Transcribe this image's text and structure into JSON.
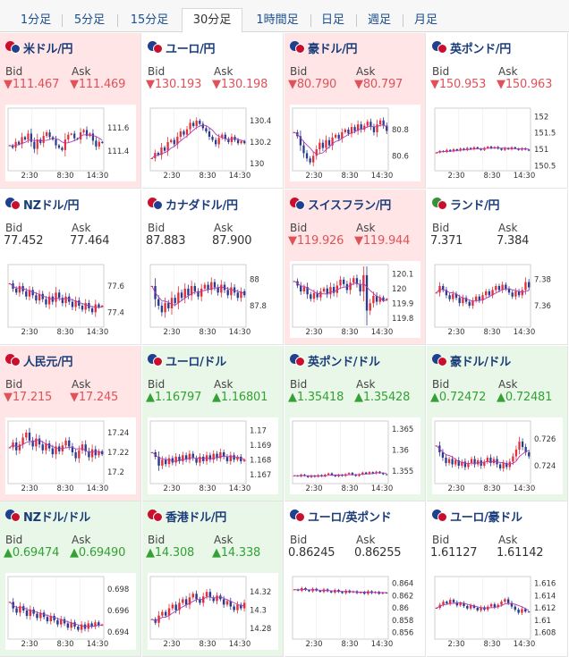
{
  "tabs": [
    {
      "label": "1分足",
      "active": false
    },
    {
      "label": "5分足",
      "active": false
    },
    {
      "label": "15分足",
      "active": false
    },
    {
      "label": "30分足",
      "active": true
    },
    {
      "label": "1時間足",
      "active": false
    },
    {
      "label": "日足",
      "active": false
    },
    {
      "label": "週足",
      "active": false
    },
    {
      "label": "月足",
      "active": false
    }
  ],
  "labels": {
    "bid": "Bid",
    "ask": "Ask"
  },
  "colors": {
    "up": "#35a035",
    "down": "#e0525a",
    "bull_candle": "#e0303a",
    "bear_candle": "#2a3a8c",
    "ma_line": "#b03ab8"
  },
  "pairs": [
    {
      "name": "米ドル/円",
      "bg": "red",
      "flags": [
        "#c8102e",
        "#1f3f8f"
      ],
      "direction": "down",
      "arrow": "▼",
      "bid": "111.467",
      "ask": "111.469",
      "chart_data": {
        "type": "candlestick",
        "x_ticks": [
          "2:30",
          "8:30",
          "14:30"
        ],
        "y_ticks": [
          "111.6",
          "111.4"
        ],
        "ylim": [
          111.25,
          111.75
        ],
        "closes": [
          111.45,
          111.43,
          111.48,
          111.46,
          111.52,
          111.5,
          111.55,
          111.48,
          111.42,
          111.5,
          111.47,
          111.53,
          111.56,
          111.52,
          111.5,
          111.45,
          111.43,
          111.41,
          111.5,
          111.54,
          111.55,
          111.51,
          111.5,
          111.56,
          111.58,
          111.53,
          111.55,
          111.49,
          111.44,
          111.48,
          111.47
        ]
      }
    },
    {
      "name": "ユーロ/円",
      "bg": "white",
      "flags": [
        "#1f3f8f",
        "#c8102e"
      ],
      "direction": "down",
      "arrow": "▼",
      "bid": "130.193",
      "ask": "130.198",
      "chart_data": {
        "type": "candlestick",
        "x_ticks": [
          "2:30",
          "8:30",
          "14:30"
        ],
        "y_ticks": [
          "130.4",
          "130.2",
          "130"
        ],
        "ylim": [
          129.95,
          130.5
        ],
        "closes": [
          130.05,
          130.1,
          130.08,
          130.15,
          130.12,
          130.2,
          130.22,
          130.18,
          130.25,
          130.3,
          130.27,
          130.32,
          130.38,
          130.35,
          130.4,
          130.37,
          130.33,
          130.3,
          130.25,
          130.22,
          130.18,
          130.24,
          130.27,
          130.23,
          130.2,
          130.25,
          130.22,
          130.19,
          130.21,
          130.19
        ]
      }
    },
    {
      "name": "豪ドル/円",
      "bg": "red",
      "flags": [
        "#1f3f8f",
        "#c8102e"
      ],
      "direction": "down",
      "arrow": "▼",
      "bid": "80.790",
      "ask": "80.797",
      "chart_data": {
        "type": "candlestick",
        "x_ticks": [
          "2:30",
          "8:30",
          "14:30"
        ],
        "y_ticks": [
          "80.8",
          "80.6"
        ],
        "ylim": [
          80.5,
          80.95
        ],
        "closes": [
          80.78,
          80.75,
          80.68,
          80.62,
          80.58,
          80.55,
          80.6,
          80.65,
          80.7,
          80.66,
          80.72,
          80.68,
          80.74,
          80.76,
          80.73,
          80.78,
          80.8,
          80.77,
          80.82,
          80.79,
          80.84,
          80.8,
          80.83,
          80.86,
          80.82,
          80.78,
          80.84,
          80.87,
          80.83,
          80.79
        ]
      }
    },
    {
      "name": "英ポンド/円",
      "bg": "white",
      "flags": [
        "#1f3f8f",
        "#c8102e"
      ],
      "direction": "down",
      "arrow": "▼",
      "bid": "150.953",
      "ask": "150.963",
      "chart_data": {
        "type": "candlestick",
        "x_ticks": [
          "2:30",
          "8:30",
          "14:30"
        ],
        "y_ticks": [
          "152",
          "151.5",
          "151",
          "150.5"
        ],
        "ylim": [
          150.4,
          152.2
        ],
        "closes": [
          150.9,
          150.95,
          150.92,
          150.98,
          150.94,
          151.0,
          150.96,
          151.02,
          150.98,
          151.04,
          151.0,
          151.06,
          151.02,
          150.98,
          151.04,
          151.08,
          151.03,
          151.07,
          151.02,
          150.98,
          151.04,
          151.0,
          151.06,
          151.02,
          150.98,
          151.03,
          150.99,
          150.96
        ]
      }
    },
    {
      "name": "NZドル/円",
      "bg": "white",
      "flags": [
        "#1f3f8f",
        "#c8102e"
      ],
      "direction": "flat",
      "arrow": "",
      "bid": "77.452",
      "ask": "77.464",
      "chart_data": {
        "type": "candlestick",
        "x_ticks": [
          "2:30",
          "8:30",
          "14:30"
        ],
        "y_ticks": [
          "77.6",
          "77.4"
        ],
        "ylim": [
          77.3,
          77.75
        ],
        "closes": [
          77.62,
          77.58,
          77.55,
          77.6,
          77.56,
          77.52,
          77.57,
          77.53,
          77.49,
          77.54,
          77.5,
          77.46,
          77.52,
          77.48,
          77.55,
          77.51,
          77.47,
          77.52,
          77.48,
          77.44,
          77.49,
          77.45,
          77.42,
          77.47,
          77.43,
          77.4,
          77.46,
          77.44,
          77.45
        ]
      }
    },
    {
      "name": "カナダドル/円",
      "bg": "white",
      "flags": [
        "#c8102e",
        "#1f3f8f"
      ],
      "direction": "flat",
      "arrow": "",
      "bid": "87.883",
      "ask": "87.900",
      "chart_data": {
        "type": "candlestick",
        "x_ticks": [
          "2:30",
          "8:30",
          "14:30"
        ],
        "y_ticks": [
          "88",
          "87.8"
        ],
        "ylim": [
          87.65,
          88.1
        ],
        "closes": [
          87.95,
          87.85,
          87.8,
          87.75,
          87.82,
          87.78,
          87.86,
          87.82,
          87.9,
          87.86,
          87.93,
          87.88,
          87.95,
          87.91,
          87.87,
          87.93,
          87.96,
          87.92,
          87.98,
          87.94,
          87.9,
          87.96,
          87.92,
          87.88,
          87.94,
          87.9,
          87.86,
          87.91,
          87.88
        ]
      }
    },
    {
      "name": "スイスフラン/円",
      "bg": "red",
      "flags": [
        "#c8102e",
        "#1f3f8f"
      ],
      "direction": "down",
      "arrow": "▼",
      "bid": "119.926",
      "ask": "119.944",
      "chart_data": {
        "type": "candlestick",
        "x_ticks": [
          "2:30",
          "8:30",
          "14:30"
        ],
        "y_ticks": [
          "120.1",
          "120",
          "119.9",
          "119.8"
        ],
        "ylim": [
          119.75,
          120.15
        ],
        "closes": [
          120.05,
          120.02,
          119.98,
          120.01,
          119.96,
          119.93,
          119.97,
          119.94,
          119.98,
          120.0,
          119.96,
          120.01,
          119.97,
          120.02,
          120.06,
          120.03,
          119.99,
          120.04,
          120.07,
          120.03,
          119.98,
          120.09,
          119.85,
          119.9,
          119.95,
          119.91,
          119.94,
          119.92,
          119.93
        ]
      }
    },
    {
      "name": "ランド/円",
      "bg": "white",
      "flags": [
        "#3a8f3a",
        "#c8102e"
      ],
      "direction": "flat",
      "arrow": "",
      "bid": "7.371",
      "ask": "7.384",
      "chart_data": {
        "type": "candlestick",
        "x_ticks": [
          "2:30",
          "8:30",
          "14:30"
        ],
        "y_ticks": [
          "7.38",
          "7.36"
        ],
        "ylim": [
          7.345,
          7.39
        ],
        "closes": [
          7.37,
          7.375,
          7.372,
          7.368,
          7.365,
          7.369,
          7.366,
          7.362,
          7.366,
          7.363,
          7.36,
          7.364,
          7.367,
          7.364,
          7.368,
          7.371,
          7.368,
          7.372,
          7.375,
          7.372,
          7.376,
          7.373,
          7.37,
          7.367,
          7.371,
          7.368,
          7.372,
          7.378,
          7.374
        ]
      }
    },
    {
      "name": "人民元/円",
      "bg": "red",
      "flags": [
        "#c8102e",
        "#c8102e"
      ],
      "direction": "down",
      "arrow": "▼",
      "bid": "17.215",
      "ask": "17.245",
      "chart_data": {
        "type": "candlestick",
        "x_ticks": [
          "2:30",
          "8:30",
          "14:30"
        ],
        "y_ticks": [
          "17.24",
          "17.22",
          "17.2"
        ],
        "ylim": [
          17.19,
          17.25
        ],
        "closes": [
          17.225,
          17.23,
          17.222,
          17.228,
          17.235,
          17.24,
          17.232,
          17.226,
          17.234,
          17.228,
          17.222,
          17.229,
          17.224,
          17.218,
          17.226,
          17.221,
          17.227,
          17.232,
          17.226,
          17.22,
          17.214,
          17.222,
          17.228,
          17.221,
          17.215,
          17.223,
          17.217,
          17.221,
          17.218
        ]
      }
    },
    {
      "name": "ユーロ/ドル",
      "bg": "green",
      "flags": [
        "#1f3f8f",
        "#c8102e"
      ],
      "direction": "up",
      "arrow": "▲",
      "bid": "1.16797",
      "ask": "1.16801",
      "chart_data": {
        "type": "candlestick",
        "x_ticks": [
          "2:30",
          "8:30",
          "14:30"
        ],
        "y_ticks": [
          "1.17",
          "1.169",
          "1.168",
          "1.167"
        ],
        "ylim": [
          1.1665,
          1.1705
        ],
        "closes": [
          1.1685,
          1.1682,
          1.1676,
          1.168,
          1.1677,
          1.1681,
          1.1678,
          1.1682,
          1.1679,
          1.1683,
          1.168,
          1.1684,
          1.1681,
          1.1678,
          1.1682,
          1.1679,
          1.1683,
          1.168,
          1.1684,
          1.1681,
          1.1685,
          1.1682,
          1.1679,
          1.1683,
          1.168,
          1.1682,
          1.1679,
          1.168
        ]
      }
    },
    {
      "name": "英ポンド/ドル",
      "bg": "green",
      "flags": [
        "#1f3f8f",
        "#c8102e"
      ],
      "direction": "up",
      "arrow": "▲",
      "bid": "1.35418",
      "ask": "1.35428",
      "chart_data": {
        "type": "candlestick",
        "x_ticks": [
          "2:30",
          "8:30",
          "14:30"
        ],
        "y_ticks": [
          "1.365",
          "1.36",
          "1.355"
        ],
        "ylim": [
          1.3525,
          1.3665
        ],
        "closes": [
          1.354,
          1.3538,
          1.3542,
          1.3539,
          1.3536,
          1.354,
          1.3537,
          1.3541,
          1.3538,
          1.3542,
          1.3545,
          1.3541,
          1.3538,
          1.3542,
          1.3539,
          1.3543,
          1.3546,
          1.3542,
          1.3539,
          1.3543,
          1.3547,
          1.3544,
          1.3548,
          1.3545,
          1.3549,
          1.3546,
          1.3543,
          1.3542
        ]
      }
    },
    {
      "name": "豪ドル/ドル",
      "bg": "green",
      "flags": [
        "#1f3f8f",
        "#c8102e"
      ],
      "direction": "up",
      "arrow": "▲",
      "bid": "0.72472",
      "ask": "0.72481",
      "chart_data": {
        "type": "candlestick",
        "x_ticks": [
          "2:30",
          "8:30",
          "14:30"
        ],
        "y_ticks": [
          "0.726",
          "0.724"
        ],
        "ylim": [
          0.7228,
          0.7272
        ],
        "closes": [
          0.7255,
          0.725,
          0.7246,
          0.7242,
          0.7245,
          0.7241,
          0.7244,
          0.724,
          0.7243,
          0.7239,
          0.7242,
          0.7245,
          0.7241,
          0.7244,
          0.724,
          0.7243,
          0.7246,
          0.7242,
          0.7245,
          0.7241,
          0.7238,
          0.7242,
          0.7239,
          0.7243,
          0.7247,
          0.7252,
          0.7258,
          0.7254,
          0.725,
          0.7247
        ]
      }
    },
    {
      "name": "NZドル/ドル",
      "bg": "green",
      "flags": [
        "#1f3f8f",
        "#c8102e"
      ],
      "direction": "up",
      "arrow": "▲",
      "bid": "0.69474",
      "ask": "0.69490",
      "chart_data": {
        "type": "candlestick",
        "x_ticks": [
          "2:30",
          "8:30",
          "14:30"
        ],
        "y_ticks": [
          "0.698",
          "0.696",
          "0.694"
        ],
        "ylim": [
          0.6935,
          0.699
        ],
        "closes": [
          0.6968,
          0.6962,
          0.6958,
          0.6964,
          0.696,
          0.6955,
          0.6961,
          0.6957,
          0.6953,
          0.6958,
          0.6954,
          0.695,
          0.6955,
          0.6951,
          0.6947,
          0.6952,
          0.6948,
          0.6944,
          0.6949,
          0.6945,
          0.6942,
          0.6947,
          0.6943,
          0.6948,
          0.6945,
          0.6949,
          0.6946,
          0.6947
        ]
      }
    },
    {
      "name": "香港ドル/円",
      "bg": "green",
      "flags": [
        "#c8102e",
        "#c8102e"
      ],
      "direction": "up",
      "arrow": "▲",
      "bid": "14.308",
      "ask": "14.338",
      "chart_data": {
        "type": "candlestick",
        "x_ticks": [
          "2:30",
          "8:30",
          "14:30"
        ],
        "y_ticks": [
          "14.32",
          "14.3",
          "14.28"
        ],
        "ylim": [
          14.27,
          14.335
        ],
        "closes": [
          14.29,
          14.286,
          14.294,
          14.298,
          14.294,
          14.302,
          14.306,
          14.3,
          14.308,
          14.312,
          14.306,
          14.314,
          14.318,
          14.312,
          14.308,
          14.315,
          14.32,
          14.314,
          14.31,
          14.316,
          14.312,
          14.306,
          14.31,
          14.304,
          14.3,
          14.306,
          14.302,
          14.308
        ]
      }
    },
    {
      "name": "ユーロ/英ポンド",
      "bg": "white",
      "flags": [
        "#1f3f8f",
        "#c8102e"
      ],
      "direction": "flat",
      "arrow": "",
      "bid": "0.86245",
      "ask": "0.86255",
      "chart_data": {
        "type": "candlestick",
        "x_ticks": [
          "2:30",
          "8:30",
          "14:30"
        ],
        "y_ticks": [
          "0.864",
          "0.862",
          "0.86",
          "0.858",
          "0.856"
        ],
        "ylim": [
          0.8552,
          0.8648
        ],
        "closes": [
          0.863,
          0.8628,
          0.8632,
          0.8629,
          0.8627,
          0.8631,
          0.8628,
          0.8626,
          0.863,
          0.8627,
          0.8625,
          0.8629,
          0.8626,
          0.8624,
          0.8628,
          0.8625,
          0.8627,
          0.8624,
          0.8626,
          0.8623,
          0.8627,
          0.8624,
          0.8626,
          0.8623,
          0.8625,
          0.8624
        ]
      }
    },
    {
      "name": "ユーロ/豪ドル",
      "bg": "white",
      "flags": [
        "#1f3f8f",
        "#c8102e"
      ],
      "direction": "flat",
      "arrow": "",
      "bid": "1.61127",
      "ask": "1.61142",
      "chart_data": {
        "type": "candlestick",
        "x_ticks": [
          "2:30",
          "8:30",
          "14:30"
        ],
        "y_ticks": [
          "1.616",
          "1.614",
          "1.612",
          "1.61",
          "1.608"
        ],
        "ylim": [
          1.6072,
          1.6168
        ],
        "closes": [
          1.612,
          1.6125,
          1.613,
          1.6127,
          1.6133,
          1.6129,
          1.6124,
          1.6128,
          1.6123,
          1.6119,
          1.6124,
          1.612,
          1.6116,
          1.6121,
          1.6117,
          1.6122,
          1.6126,
          1.6121,
          1.6125,
          1.613,
          1.6134,
          1.6128,
          1.6122,
          1.6117,
          1.6112,
          1.6118,
          1.6114,
          1.6113
        ]
      }
    }
  ]
}
